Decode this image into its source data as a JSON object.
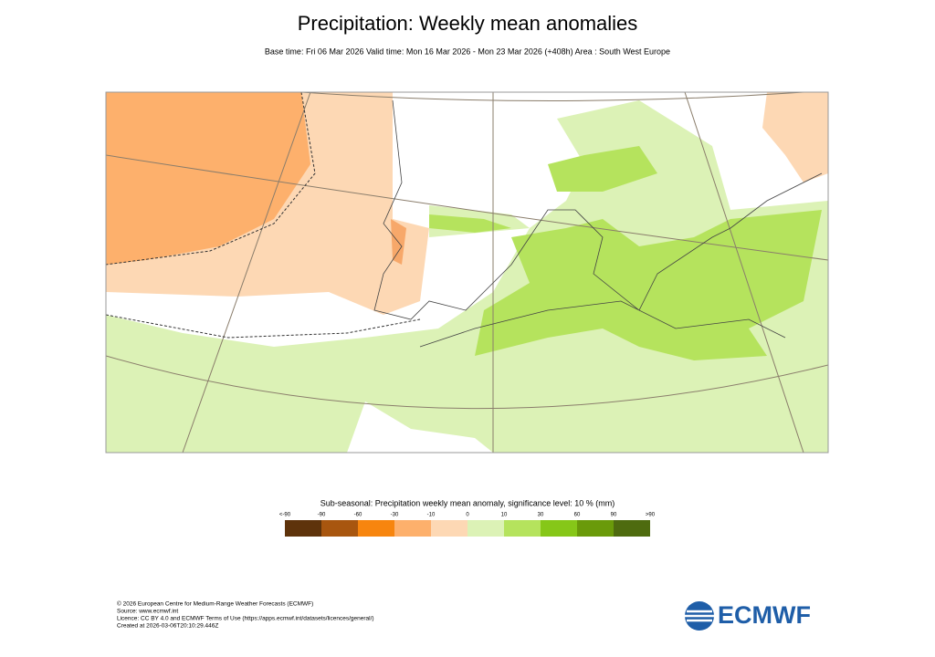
{
  "header": {
    "title": "Precipitation: Weekly mean anomalies",
    "subtitle": "Base time: Fri 06 Mar 2026 Valid time: Mon 16 Mar 2026 - Mon 23 Mar 2026 (+408h) Area : South West Europe"
  },
  "legend": {
    "title": "Sub-seasonal: Precipitation weekly mean anomaly, significance level: 10 % (mm)",
    "labels": [
      "<-90",
      "-90",
      "-60",
      "-30",
      "-10",
      "0",
      "10",
      "30",
      "60",
      "90",
      ">90"
    ],
    "colors": [
      "#5e330b",
      "#a8560f",
      "#f7850e",
      "#fdb06c",
      "#fdd8b4",
      "#dcf2b6",
      "#b5e35d",
      "#86c718",
      "#6a9a0a",
      "#4e6b0f"
    ]
  },
  "footer": {
    "lines": [
      "© 2026 European Centre for Medium-Range Weather Forecasts (ECMWF)",
      "Source: www.ecmwf.int",
      "Licence: CC BY 4.0 and ECMWF Terms of Use (https://apps.ecmwf.int/datasets/licences/general/)",
      "Created at 2026-03-06T20:10:29.446Z"
    ],
    "logo": "ECMWF"
  }
}
